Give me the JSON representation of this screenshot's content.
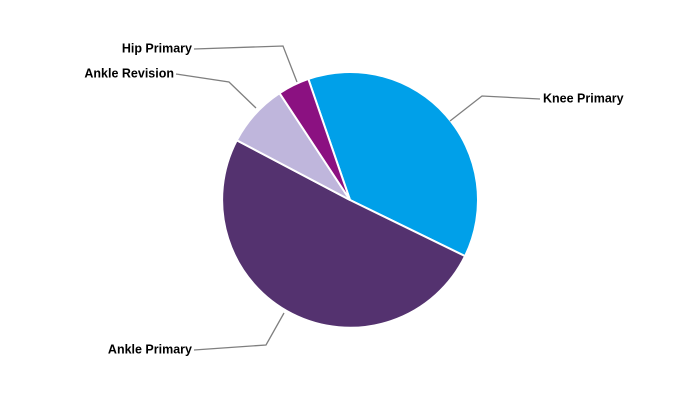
{
  "chart_data": {
    "type": "pie",
    "title": "",
    "start_angle_deg": 341,
    "direction": "clockwise",
    "slices": [
      {
        "label": "Knee Primary",
        "value": 37.5,
        "color": "#00a0e9"
      },
      {
        "label": "Ankle Primary",
        "value": 50.5,
        "color": "#54326f"
      },
      {
        "label": "Ankle Revision",
        "value": 8.0,
        "color": "#bfb6dc"
      },
      {
        "label": "Hip Primary",
        "value": 4.0,
        "color": "#8b1181"
      }
    ],
    "legend": "none",
    "labels": "outside-with-leader-lines"
  }
}
